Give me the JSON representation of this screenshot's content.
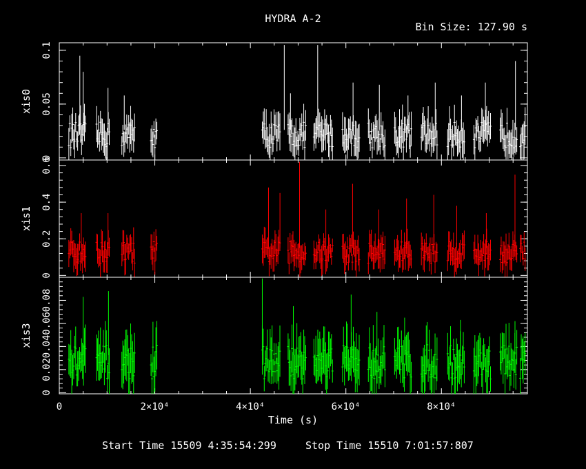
{
  "title": "HYDRA A-2",
  "bin_size": "Bin Size: 127.90 s",
  "footer": {
    "start": "Start Time 15509  4:35:54:299",
    "stop": "Stop Time 15510  7:01:57:807"
  },
  "chart_data": {
    "type": "line",
    "style": "binned light curve with vertical error bars, three stacked panels sharing the time axis",
    "xlabel": "Time (s)",
    "xlim": [
      0,
      98000
    ],
    "x_ticks": [
      {
        "value": 0,
        "label": "0"
      },
      {
        "value": 20000,
        "label": "2×10⁴"
      },
      {
        "value": 40000,
        "label": "4×10⁴"
      },
      {
        "value": 60000,
        "label": "6×10⁴"
      },
      {
        "value": 80000,
        "label": "8×10⁴"
      }
    ],
    "panels": [
      {
        "name": "xis0",
        "color": "#ffffff",
        "ylim": [
          -0.002,
          0.107
        ],
        "y_ticks": [
          {
            "value": 0,
            "label": "0"
          },
          {
            "value": 0.05,
            "label": "0.05"
          },
          {
            "value": 0.1,
            "label": "0.1"
          }
        ],
        "segments": [
          [
            2000,
            5600
          ],
          [
            7800,
            10600
          ],
          [
            13100,
            15800
          ],
          [
            19200,
            20600
          ],
          [
            42500,
            46200
          ],
          [
            47900,
            51600
          ],
          [
            53300,
            57200
          ],
          [
            59300,
            62800
          ],
          [
            64700,
            68200
          ],
          [
            70200,
            73800
          ],
          [
            75800,
            79200
          ],
          [
            81300,
            84800
          ],
          [
            86800,
            90300
          ],
          [
            92300,
            95900
          ],
          [
            96500,
            97600
          ]
        ],
        "spikes": [
          [
            4300,
            0.095
          ],
          [
            5000,
            0.08
          ],
          [
            10200,
            0.065
          ],
          [
            13600,
            0.058
          ],
          [
            47100,
            0.105
          ],
          [
            48400,
            0.06
          ],
          [
            54100,
            0.105
          ],
          [
            61500,
            0.07
          ],
          [
            67000,
            0.068
          ],
          [
            73000,
            0.058
          ],
          [
            78700,
            0.07
          ],
          [
            84200,
            0.058
          ],
          [
            89200,
            0.07
          ],
          [
            95500,
            0.09
          ]
        ],
        "base": 0.02,
        "noise": 0.012
      },
      {
        "name": "xis1",
        "color": "#ff0000",
        "ylim": [
          -0.01,
          0.63
        ],
        "y_ticks": [
          {
            "value": 0,
            "label": "0"
          },
          {
            "value": 0.2,
            "label": "0.2"
          },
          {
            "value": 0.4,
            "label": "0.4"
          },
          {
            "value": 0.6,
            "label": "0.6"
          }
        ],
        "segments": [
          [
            2000,
            5600
          ],
          [
            7800,
            10600
          ],
          [
            13100,
            15800
          ],
          [
            19200,
            20600
          ],
          [
            42500,
            46200
          ],
          [
            47900,
            51600
          ],
          [
            53300,
            57200
          ],
          [
            59300,
            62800
          ],
          [
            64700,
            68200
          ],
          [
            70200,
            73800
          ],
          [
            75800,
            79200
          ],
          [
            81300,
            84800
          ],
          [
            86800,
            90300
          ],
          [
            92300,
            95900
          ],
          [
            96500,
            97600
          ]
        ],
        "spikes": [
          [
            4600,
            0.34
          ],
          [
            10200,
            0.34
          ],
          [
            43800,
            0.48
          ],
          [
            46200,
            0.45
          ],
          [
            50300,
            0.62
          ],
          [
            55800,
            0.36
          ],
          [
            61400,
            0.5
          ],
          [
            66900,
            0.36
          ],
          [
            72700,
            0.42
          ],
          [
            78400,
            0.44
          ],
          [
            83200,
            0.38
          ],
          [
            89400,
            0.34
          ],
          [
            95400,
            0.55
          ]
        ],
        "base": 0.12,
        "noise": 0.06
      },
      {
        "name": "xis3",
        "color": "#00ff00",
        "ylim": [
          -0.001,
          0.1
        ],
        "y_ticks": [
          {
            "value": 0,
            "label": "0"
          },
          {
            "value": 0.02,
            "label": "0.02"
          },
          {
            "value": 0.04,
            "label": "0.04"
          },
          {
            "value": 0.06,
            "label": "0.06"
          },
          {
            "value": 0.08,
            "label": "0.08"
          }
        ],
        "segments": [
          [
            2000,
            5600
          ],
          [
            7800,
            10600
          ],
          [
            13100,
            15800
          ],
          [
            19200,
            20600
          ],
          [
            42500,
            46200
          ],
          [
            47900,
            51600
          ],
          [
            53300,
            57200
          ],
          [
            59300,
            62800
          ],
          [
            64700,
            68200
          ],
          [
            70200,
            73800
          ],
          [
            75800,
            79200
          ],
          [
            81300,
            84800
          ],
          [
            86800,
            90300
          ],
          [
            92300,
            95900
          ],
          [
            96500,
            97600
          ]
        ],
        "spikes": [
          [
            5000,
            0.083
          ],
          [
            10300,
            0.088
          ],
          [
            42500,
            0.099
          ],
          [
            49000,
            0.075
          ],
          [
            61100,
            0.085
          ],
          [
            66500,
            0.07
          ],
          [
            72300,
            0.065
          ],
          [
            84000,
            0.063
          ],
          [
            95400,
            0.062
          ]
        ],
        "base": 0.025,
        "noise": 0.015
      }
    ]
  }
}
